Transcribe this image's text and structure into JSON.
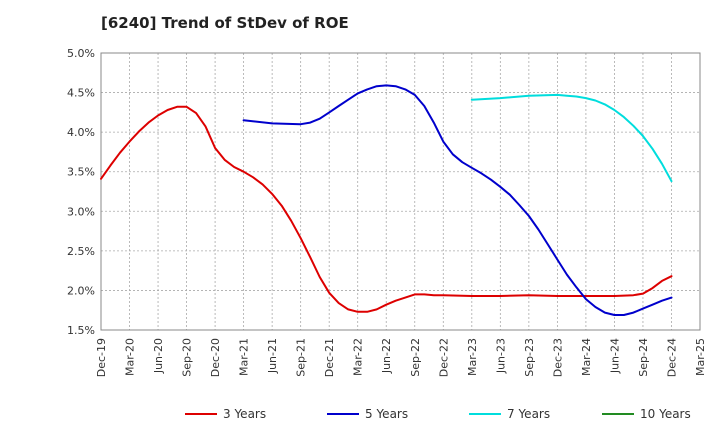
{
  "chart_data": {
    "type": "line",
    "title": "[6240]  Trend of StDev of ROE",
    "xlabel": "",
    "ylabel": "",
    "x_ticks": [
      "Dec-19",
      "Mar-20",
      "Jun-20",
      "Sep-20",
      "Dec-20",
      "Mar-21",
      "Jun-21",
      "Sep-21",
      "Dec-21",
      "Mar-22",
      "Jun-22",
      "Sep-22",
      "Dec-22",
      "Mar-23",
      "Jun-23",
      "Sep-23",
      "Dec-23",
      "Mar-24",
      "Jun-24",
      "Sep-24",
      "Dec-24",
      "Mar-25"
    ],
    "y_ticks": [
      "1.5%",
      "2.0%",
      "2.5%",
      "3.0%",
      "3.5%",
      "4.0%",
      "4.5%",
      "5.0%"
    ],
    "ylim": [
      1.5,
      5.0
    ],
    "y_unit": "%",
    "grid": true,
    "legend_position": "bottom",
    "series": [
      {
        "name": "3 Years",
        "color": "#dd0000",
        "points": [
          [
            "Dec-19",
            3.41
          ],
          [
            "Jan-20",
            3.58
          ],
          [
            "Feb-20",
            3.74
          ],
          [
            "Mar-20",
            3.88
          ],
          [
            "Apr-20",
            4.01
          ],
          [
            "May-20",
            4.12
          ],
          [
            "Jun-20",
            4.21
          ],
          [
            "Jul-20",
            4.28
          ],
          [
            "Aug-20",
            4.32
          ],
          [
            "Sep-20",
            4.32
          ],
          [
            "Oct-20",
            4.24
          ],
          [
            "Nov-20",
            4.07
          ],
          [
            "Dec-20",
            3.8
          ],
          [
            "Jan-21",
            3.65
          ],
          [
            "Feb-21",
            3.56
          ],
          [
            "Mar-21",
            3.5
          ],
          [
            "Apr-21",
            3.43
          ],
          [
            "May-21",
            3.34
          ],
          [
            "Jun-21",
            3.22
          ],
          [
            "Jul-21",
            3.07
          ],
          [
            "Aug-21",
            2.88
          ],
          [
            "Sep-21",
            2.66
          ],
          [
            "Oct-21",
            2.42
          ],
          [
            "Nov-21",
            2.17
          ],
          [
            "Dec-21",
            1.97
          ],
          [
            "Jan-22",
            1.84
          ],
          [
            "Feb-22",
            1.76
          ],
          [
            "Mar-22",
            1.73
          ],
          [
            "Apr-22",
            1.73
          ],
          [
            "May-22",
            1.76
          ],
          [
            "Jun-22",
            1.82
          ],
          [
            "Jul-22",
            1.87
          ],
          [
            "Aug-22",
            1.91
          ],
          [
            "Sep-22",
            1.95
          ],
          [
            "Oct-22",
            1.95
          ],
          [
            "Nov-22",
            1.94
          ],
          [
            "Dec-22",
            1.94
          ],
          [
            "Mar-23",
            1.93
          ],
          [
            "Jun-23",
            1.93
          ],
          [
            "Sep-23",
            1.94
          ],
          [
            "Dec-23",
            1.93
          ],
          [
            "Mar-24",
            1.93
          ],
          [
            "Jun-24",
            1.93
          ],
          [
            "Aug-24",
            1.94
          ],
          [
            "Sep-24",
            1.96
          ],
          [
            "Oct-24",
            2.03
          ],
          [
            "Nov-24",
            2.12
          ],
          [
            "Dec-24",
            2.18
          ]
        ]
      },
      {
        "name": "5 Years",
        "color": "#0000cc",
        "points": [
          [
            "Mar-21",
            4.15
          ],
          [
            "Jun-21",
            4.11
          ],
          [
            "Sep-21",
            4.1
          ],
          [
            "Oct-21",
            4.12
          ],
          [
            "Nov-21",
            4.17
          ],
          [
            "Dec-21",
            4.25
          ],
          [
            "Jan-22",
            4.33
          ],
          [
            "Feb-22",
            4.41
          ],
          [
            "Mar-22",
            4.49
          ],
          [
            "Apr-22",
            4.54
          ],
          [
            "May-22",
            4.58
          ],
          [
            "Jun-22",
            4.59
          ],
          [
            "Jul-22",
            4.58
          ],
          [
            "Aug-22",
            4.54
          ],
          [
            "Sep-22",
            4.47
          ],
          [
            "Oct-22",
            4.33
          ],
          [
            "Nov-22",
            4.12
          ],
          [
            "Dec-22",
            3.88
          ],
          [
            "Jan-23",
            3.72
          ],
          [
            "Feb-23",
            3.62
          ],
          [
            "Mar-23",
            3.55
          ],
          [
            "Apr-23",
            3.48
          ],
          [
            "May-23",
            3.4
          ],
          [
            "Jun-23",
            3.31
          ],
          [
            "Jul-23",
            3.21
          ],
          [
            "Aug-23",
            3.08
          ],
          [
            "Sep-23",
            2.94
          ],
          [
            "Oct-23",
            2.77
          ],
          [
            "Nov-23",
            2.58
          ],
          [
            "Dec-23",
            2.39
          ],
          [
            "Jan-24",
            2.2
          ],
          [
            "Feb-24",
            2.04
          ],
          [
            "Mar-24",
            1.89
          ],
          [
            "Apr-24",
            1.79
          ],
          [
            "May-24",
            1.72
          ],
          [
            "Jun-24",
            1.69
          ],
          [
            "Jul-24",
            1.69
          ],
          [
            "Aug-24",
            1.72
          ],
          [
            "Sep-24",
            1.77
          ],
          [
            "Oct-24",
            1.82
          ],
          [
            "Nov-24",
            1.87
          ],
          [
            "Dec-24",
            1.91
          ]
        ]
      },
      {
        "name": "7 Years",
        "color": "#00dddd",
        "points": [
          [
            "Mar-23",
            4.41
          ],
          [
            "Jun-23",
            4.43
          ],
          [
            "Sep-23",
            4.46
          ],
          [
            "Dec-23",
            4.47
          ],
          [
            "Jan-24",
            4.46
          ],
          [
            "Feb-24",
            4.45
          ],
          [
            "Mar-24",
            4.43
          ],
          [
            "Apr-24",
            4.4
          ],
          [
            "May-24",
            4.35
          ],
          [
            "Jun-24",
            4.28
          ],
          [
            "Jul-24",
            4.19
          ],
          [
            "Aug-24",
            4.08
          ],
          [
            "Sep-24",
            3.95
          ],
          [
            "Oct-24",
            3.79
          ],
          [
            "Nov-24",
            3.6
          ],
          [
            "Dec-24",
            3.38
          ]
        ]
      },
      {
        "name": "10 Years",
        "color": "#228b22",
        "points": []
      }
    ]
  }
}
